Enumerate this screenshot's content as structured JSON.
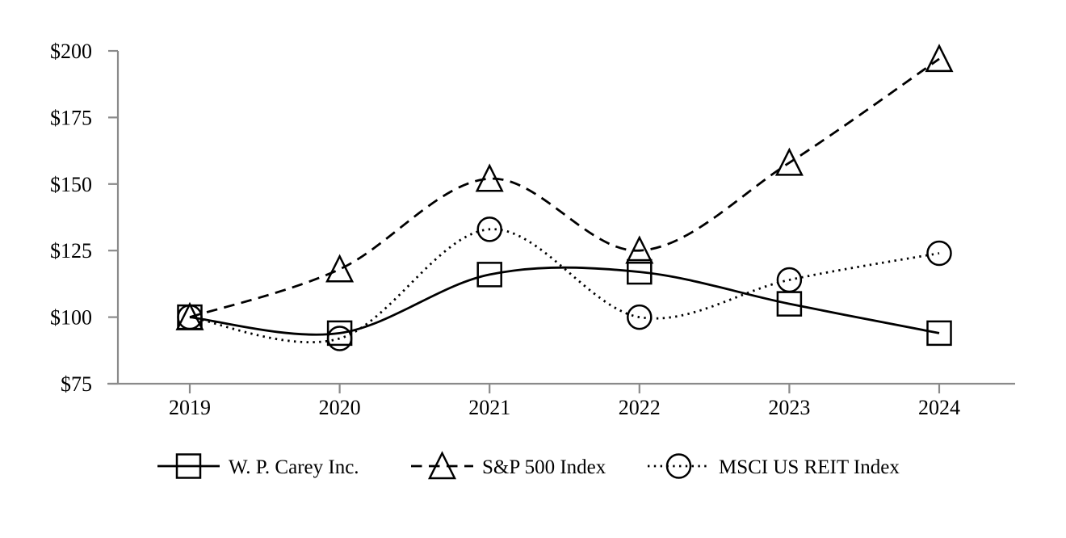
{
  "chart_data": {
    "type": "line",
    "title": "",
    "xlabel": "",
    "ylabel": "",
    "x_labels": [
      "2019",
      "2020",
      "2021",
      "2022",
      "2023",
      "2024"
    ],
    "y_ticks": [
      75,
      100,
      125,
      150,
      175,
      200
    ],
    "y_tick_labels": [
      "$75",
      "$100",
      "$125",
      "$150",
      "$175",
      "$200"
    ],
    "ylim": [
      75,
      200
    ],
    "grid": false,
    "legend_position": "bottom",
    "series": [
      {
        "name": "W. P. Carey Inc.",
        "marker": "square",
        "line_style": "solid",
        "values": [
          100,
          94,
          116,
          117,
          105,
          94
        ]
      },
      {
        "name": "S&P 500 Index",
        "marker": "triangle",
        "line_style": "dashed",
        "values": [
          100,
          118,
          152,
          125,
          158,
          197
        ]
      },
      {
        "name": "MSCI US REIT Index",
        "marker": "circle",
        "line_style": "dotted",
        "values": [
          100,
          92,
          133,
          100,
          114,
          124
        ]
      }
    ],
    "colors": {
      "axis": "#8a8a8a",
      "series_line": "#000000",
      "text": "#000000",
      "background": "#ffffff"
    }
  }
}
